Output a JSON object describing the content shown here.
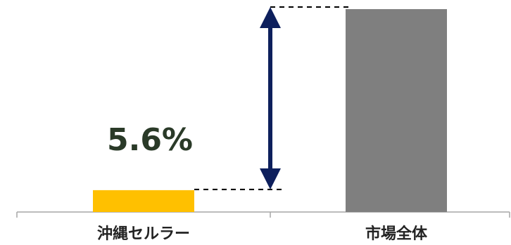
{
  "chart_data": {
    "type": "bar",
    "categories": [
      "沖縄セルラー",
      "市場全体"
    ],
    "values": [
      5.6,
      52
    ],
    "data_labels": [
      "5.6%",
      ""
    ],
    "colors": [
      "#FFC000",
      "#7F7F7F"
    ],
    "annotation": {
      "type": "double-arrow",
      "color": "#0D1F5C",
      "between": [
        "沖縄セルラー",
        "市場全体"
      ]
    },
    "axis_color": "#A6A6A6",
    "grid": false,
    "legend": "none"
  }
}
